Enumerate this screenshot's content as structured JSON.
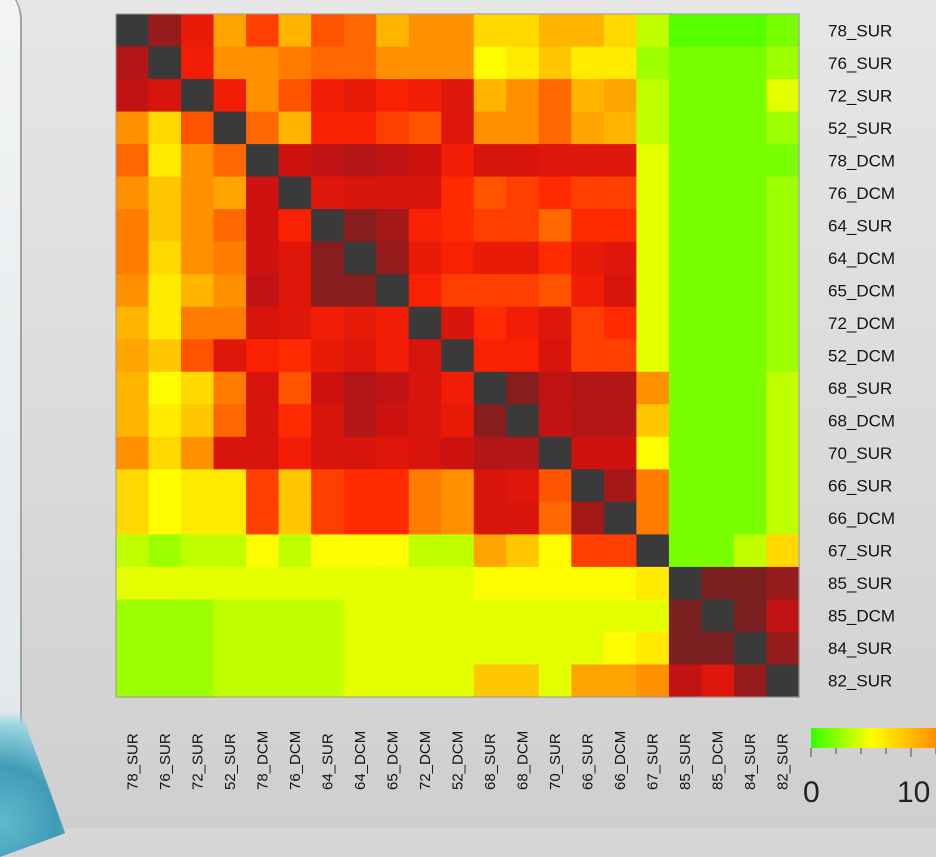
{
  "chart_data": {
    "type": "heatmap",
    "labels": [
      "78_SUR",
      "76_SUR",
      "72_SUR",
      "52_SUR",
      "78_DCM",
      "76_DCM",
      "64_SUR",
      "64_DCM",
      "65_DCM",
      "72_DCM",
      "52_DCM",
      "68_SUR",
      "68_DCM",
      "70_SUR",
      "66_SUR",
      "66_DCM",
      "67_SUR",
      "85_SUR",
      "85_DCM",
      "84_SUR",
      "82_SUR"
    ],
    "values": [
      [
        null,
        27,
        20,
        11,
        16,
        10,
        15,
        14,
        10,
        12,
        12,
        8,
        8,
        10,
        10,
        8,
        4,
        1,
        1,
        1,
        2
      ],
      [
        25,
        null,
        19,
        12,
        12,
        13,
        14,
        14,
        12,
        12,
        12,
        6,
        7,
        9,
        7,
        7,
        3,
        2,
        2,
        2,
        3
      ],
      [
        24,
        22,
        null,
        19,
        12,
        15,
        19,
        20,
        18,
        19,
        21,
        10,
        12,
        14,
        10,
        11,
        4,
        2,
        2,
        2,
        5
      ],
      [
        12,
        8,
        15,
        null,
        14,
        10,
        18,
        18,
        16,
        15,
        21,
        12,
        12,
        14,
        11,
        10,
        4,
        2,
        2,
        2,
        3
      ],
      [
        14,
        7,
        12,
        14,
        null,
        23,
        24,
        25,
        24,
        23,
        19,
        22,
        22,
        21,
        21,
        21,
        5,
        2,
        2,
        2,
        2
      ],
      [
        12,
        9,
        12,
        11,
        23,
        null,
        21,
        22,
        22,
        22,
        17,
        15,
        16,
        17,
        16,
        16,
        5,
        2,
        2,
        2,
        3
      ],
      [
        13,
        9,
        12,
        14,
        23,
        18,
        null,
        28,
        26,
        18,
        17,
        16,
        16,
        14,
        17,
        17,
        5,
        2,
        2,
        2,
        3
      ],
      [
        13,
        8,
        12,
        13,
        23,
        21,
        28,
        null,
        27,
        20,
        18,
        20,
        20,
        17,
        20,
        21,
        5,
        2,
        2,
        2,
        3
      ],
      [
        12,
        7,
        10,
        12,
        24,
        21,
        28,
        28,
        null,
        18,
        16,
        16,
        16,
        15,
        19,
        22,
        5,
        2,
        2,
        2,
        3
      ],
      [
        10,
        7,
        13,
        13,
        22,
        21,
        19,
        20,
        19,
        null,
        22,
        17,
        19,
        21,
        16,
        17,
        5,
        2,
        2,
        2,
        3
      ],
      [
        11,
        9,
        15,
        21,
        18,
        17,
        20,
        21,
        19,
        22,
        null,
        18,
        18,
        22,
        16,
        16,
        5,
        2,
        2,
        2,
        3
      ],
      [
        10,
        6,
        8,
        13,
        22,
        15,
        23,
        25,
        24,
        22,
        19,
        null,
        28,
        24,
        25,
        25,
        12,
        2,
        2,
        2,
        4
      ],
      [
        10,
        7,
        9,
        14,
        22,
        17,
        22,
        25,
        23,
        22,
        20,
        28,
        null,
        24,
        25,
        25,
        9,
        2,
        2,
        2,
        4
      ],
      [
        12,
        8,
        12,
        22,
        22,
        19,
        22,
        22,
        21,
        22,
        23,
        25,
        25,
        null,
        23,
        23,
        6,
        2,
        2,
        2,
        4
      ],
      [
        8,
        6,
        7,
        7,
        16,
        9,
        16,
        17,
        17,
        13,
        12,
        22,
        21,
        15,
        null,
        26,
        13,
        2,
        2,
        2,
        4
      ],
      [
        8,
        6,
        7,
        7,
        16,
        9,
        16,
        17,
        17,
        13,
        12,
        22,
        22,
        14,
        26,
        null,
        13,
        2,
        2,
        2,
        4
      ],
      [
        4,
        3,
        4,
        4,
        6,
        4,
        6,
        6,
        6,
        4,
        4,
        11,
        9,
        6,
        16,
        16,
        null,
        2,
        2,
        4,
        8
      ],
      [
        5,
        5,
        5,
        5,
        5,
        5,
        5,
        5,
        5,
        5,
        5,
        6,
        6,
        6,
        6,
        6,
        7,
        null,
        29,
        29,
        27
      ],
      [
        3,
        3,
        3,
        4,
        4,
        4,
        4,
        5,
        5,
        5,
        5,
        5,
        5,
        5,
        5,
        5,
        5,
        29,
        null,
        29,
        24
      ],
      [
        3,
        3,
        3,
        4,
        4,
        4,
        4,
        5,
        5,
        5,
        5,
        5,
        5,
        5,
        5,
        6,
        7,
        29,
        29,
        null,
        27
      ],
      [
        3,
        3,
        3,
        4,
        4,
        4,
        4,
        5,
        5,
        5,
        5,
        9,
        9,
        5,
        11,
        11,
        12,
        24,
        21,
        27,
        null
      ]
    ],
    "colorscale": {
      "ticks": [
        "0",
        "10",
        "2"
      ],
      "stops": [
        "#33ff00",
        "#ffff00",
        "#ff9900",
        "#ff2200",
        "#cc1111",
        "#7a2020"
      ]
    },
    "diagonal_color": "#3a3a3a"
  }
}
